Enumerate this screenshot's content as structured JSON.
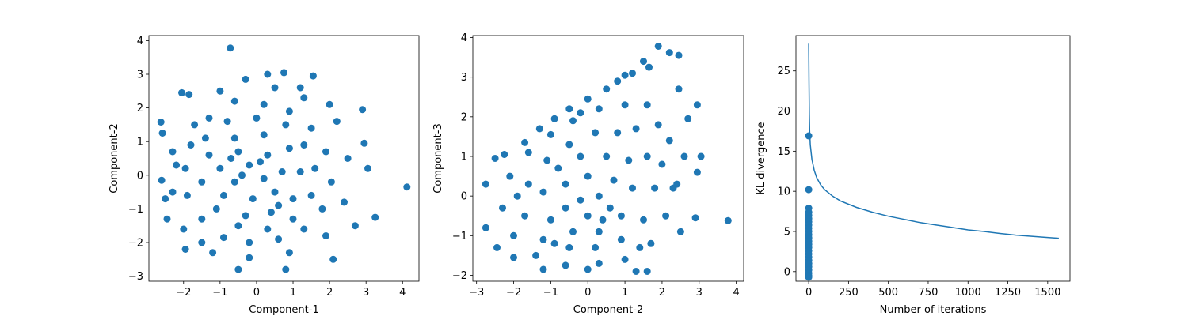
{
  "chart_data": [
    {
      "type": "scatter",
      "xlabel": "Component-1",
      "ylabel": "Component-2",
      "xlim": [
        -2.95,
        4.45
      ],
      "ylim": [
        -3.15,
        4.15
      ],
      "xticks": [
        -2,
        -1,
        0,
        1,
        2,
        3,
        4
      ],
      "yticks": [
        -3,
        -2,
        -1,
        0,
        1,
        2,
        3,
        4
      ],
      "color": "#1f77b4",
      "grid": false,
      "points": [
        [
          4.12,
          -0.35
        ],
        [
          -0.72,
          3.78
        ],
        [
          -2.62,
          1.58
        ],
        [
          -2.58,
          1.25
        ],
        [
          3.25,
          -1.25
        ],
        [
          -2.05,
          2.45
        ],
        [
          -1.85,
          2.4
        ],
        [
          1.55,
          2.95
        ],
        [
          0.75,
          3.05
        ],
        [
          0.3,
          3.0
        ],
        [
          2.9,
          1.95
        ],
        [
          2.95,
          0.95
        ],
        [
          3.05,
          0.2
        ],
        [
          2.1,
          -2.5
        ],
        [
          -0.5,
          -2.8
        ],
        [
          0.8,
          -2.8
        ],
        [
          -1.95,
          -2.2
        ],
        [
          -2.45,
          -1.3
        ],
        [
          -2.6,
          -0.15
        ],
        [
          -2.3,
          0.7
        ],
        [
          -1.0,
          2.5
        ],
        [
          0.5,
          2.6
        ],
        [
          1.3,
          2.3
        ],
        [
          2.2,
          1.6
        ],
        [
          2.5,
          0.5
        ],
        [
          2.4,
          -0.8
        ],
        [
          1.9,
          -1.8
        ],
        [
          0.9,
          -2.3
        ],
        [
          -0.2,
          -2.45
        ],
        [
          -1.2,
          -2.3
        ],
        [
          -2.0,
          -1.6
        ],
        [
          -2.5,
          -0.7
        ],
        [
          -2.2,
          0.3
        ],
        [
          -1.7,
          1.5
        ],
        [
          2.7,
          -1.5
        ],
        [
          -1.5,
          -2.0
        ],
        [
          1.2,
          2.6
        ],
        [
          -0.3,
          2.85
        ],
        [
          2.0,
          2.1
        ],
        [
          -2.3,
          -0.5
        ],
        [
          -1.8,
          0.9
        ],
        [
          -1.3,
          1.7
        ],
        [
          -0.6,
          2.2
        ],
        [
          0.2,
          2.1
        ],
        [
          0.9,
          1.9
        ],
        [
          1.5,
          1.4
        ],
        [
          1.9,
          0.7
        ],
        [
          2.05,
          -0.2
        ],
        [
          1.8,
          -1.0
        ],
        [
          1.3,
          -1.6
        ],
        [
          0.6,
          -1.9
        ],
        [
          -0.2,
          -2.0
        ],
        [
          -0.9,
          -1.85
        ],
        [
          -1.5,
          -1.3
        ],
        [
          -1.9,
          -0.6
        ],
        [
          -1.95,
          0.2
        ],
        [
          -1.4,
          1.1
        ],
        [
          -0.8,
          1.6
        ],
        [
          0.0,
          1.7
        ],
        [
          0.8,
          1.5
        ],
        [
          1.3,
          0.9
        ],
        [
          1.6,
          0.2
        ],
        [
          1.5,
          -0.6
        ],
        [
          1.0,
          -1.3
        ],
        [
          0.3,
          -1.6
        ],
        [
          -0.5,
          -1.5
        ],
        [
          -1.1,
          -1.0
        ],
        [
          -1.5,
          -0.2
        ],
        [
          -1.3,
          0.6
        ],
        [
          -0.6,
          1.1
        ],
        [
          0.2,
          1.2
        ],
        [
          0.9,
          0.8
        ],
        [
          1.2,
          0.1
        ],
        [
          1.0,
          -0.7
        ],
        [
          0.4,
          -1.1
        ],
        [
          -0.3,
          -1.2
        ],
        [
          -0.9,
          -0.6
        ],
        [
          -1.0,
          0.2
        ],
        [
          -0.5,
          0.7
        ],
        [
          0.3,
          0.6
        ],
        [
          0.7,
          0.1
        ],
        [
          0.5,
          -0.5
        ],
        [
          -0.1,
          -0.7
        ],
        [
          -0.6,
          -0.2
        ],
        [
          -0.2,
          0.3
        ],
        [
          0.2,
          -0.1
        ],
        [
          -0.4,
          0.0
        ],
        [
          0.1,
          0.4
        ],
        [
          -0.7,
          0.5
        ],
        [
          0.6,
          -0.9
        ]
      ]
    },
    {
      "type": "scatter",
      "xlabel": "Component-2",
      "ylabel": "Component-3",
      "xlim": [
        -3.1,
        4.2
      ],
      "ylim": [
        -2.15,
        4.05
      ],
      "xticks": [
        -3,
        -2,
        -1,
        0,
        1,
        2,
        3,
        4
      ],
      "yticks": [
        -2,
        -1,
        0,
        1,
        2,
        3,
        4
      ],
      "color": "#1f77b4",
      "grid": false,
      "points": [
        [
          1.9,
          3.78
        ],
        [
          2.2,
          3.62
        ],
        [
          2.45,
          3.55
        ],
        [
          1.5,
          3.4
        ],
        [
          1.65,
          3.25
        ],
        [
          1.2,
          3.1
        ],
        [
          1.0,
          3.05
        ],
        [
          2.45,
          2.7
        ],
        [
          2.95,
          2.3
        ],
        [
          2.7,
          1.95
        ],
        [
          3.05,
          1.0
        ],
        [
          2.95,
          0.6
        ],
        [
          3.78,
          -0.62
        ],
        [
          2.9,
          -0.55
        ],
        [
          2.5,
          -0.9
        ],
        [
          1.6,
          -1.9
        ],
        [
          1.3,
          -1.9
        ],
        [
          0.0,
          -1.85
        ],
        [
          -1.2,
          -1.85
        ],
        [
          -2.0,
          -1.55
        ],
        [
          -2.45,
          -1.3
        ],
        [
          -2.75,
          -0.8
        ],
        [
          -2.75,
          0.3
        ],
        [
          -2.5,
          0.95
        ],
        [
          -2.25,
          1.05
        ],
        [
          -1.7,
          1.35
        ],
        [
          -1.3,
          1.7
        ],
        [
          -0.9,
          1.95
        ],
        [
          -0.5,
          2.2
        ],
        [
          0.0,
          2.45
        ],
        [
          0.5,
          2.7
        ],
        [
          0.8,
          2.9
        ],
        [
          1.6,
          2.3
        ],
        [
          1.9,
          1.8
        ],
        [
          2.2,
          1.4
        ],
        [
          2.6,
          1.0
        ],
        [
          2.3,
          0.2
        ],
        [
          2.1,
          -0.5
        ],
        [
          1.7,
          -1.2
        ],
        [
          1.0,
          -1.6
        ],
        [
          0.3,
          -1.7
        ],
        [
          -0.6,
          -1.75
        ],
        [
          -1.4,
          -1.5
        ],
        [
          -2.0,
          -1.0
        ],
        [
          -2.3,
          -0.3
        ],
        [
          -2.1,
          0.5
        ],
        [
          -1.6,
          1.1
        ],
        [
          -1.0,
          1.55
        ],
        [
          -0.4,
          1.9
        ],
        [
          0.3,
          2.2
        ],
        [
          1.0,
          2.3
        ],
        [
          1.3,
          1.7
        ],
        [
          1.6,
          1.0
        ],
        [
          1.8,
          0.2
        ],
        [
          1.5,
          -0.6
        ],
        [
          0.9,
          -1.1
        ],
        [
          0.2,
          -1.3
        ],
        [
          -0.5,
          -1.3
        ],
        [
          -1.2,
          -1.1
        ],
        [
          -1.7,
          -0.5
        ],
        [
          -1.6,
          0.3
        ],
        [
          -1.1,
          0.9
        ],
        [
          -0.5,
          1.3
        ],
        [
          0.2,
          1.6
        ],
        [
          0.8,
          1.6
        ],
        [
          1.1,
          0.9
        ],
        [
          1.2,
          0.2
        ],
        [
          0.9,
          -0.5
        ],
        [
          0.3,
          -0.9
        ],
        [
          -0.4,
          -0.9
        ],
        [
          -1.0,
          -0.6
        ],
        [
          -1.2,
          0.1
        ],
        [
          -0.8,
          0.7
        ],
        [
          -0.2,
          1.0
        ],
        [
          0.5,
          1.0
        ],
        [
          0.7,
          0.4
        ],
        [
          0.6,
          -0.3
        ],
        [
          0.0,
          -0.5
        ],
        [
          -0.6,
          -0.3
        ],
        [
          -0.6,
          0.3
        ],
        [
          0.0,
          0.5
        ],
        [
          0.3,
          0.0
        ],
        [
          -0.2,
          -0.1
        ],
        [
          0.4,
          -0.6
        ],
        [
          -0.9,
          -1.2
        ],
        [
          1.4,
          -1.3
        ],
        [
          2.0,
          0.8
        ],
        [
          2.4,
          0.3
        ],
        [
          -1.9,
          0.0
        ],
        [
          -0.2,
          2.1
        ]
      ]
    },
    {
      "type": "line+scatter",
      "xlabel": "Number of iterations",
      "ylabel": "KL divergence",
      "xlim": [
        -80,
        1640
      ],
      "ylim": [
        -1.2,
        29.4
      ],
      "xticks": [
        0,
        250,
        500,
        750,
        1000,
        1250,
        1500
      ],
      "yticks": [
        0,
        5,
        10,
        15,
        20,
        25
      ],
      "color": "#1f77b4",
      "grid": false,
      "line": [
        [
          0,
          28.4
        ],
        [
          2,
          23.5
        ],
        [
          4,
          19.5
        ],
        [
          6,
          17.5
        ],
        [
          10,
          15.8
        ],
        [
          20,
          14.0
        ],
        [
          35,
          12.6
        ],
        [
          50,
          11.7
        ],
        [
          75,
          10.8
        ],
        [
          100,
          10.2
        ],
        [
          150,
          9.4
        ],
        [
          200,
          8.8
        ],
        [
          300,
          8.0
        ],
        [
          400,
          7.4
        ],
        [
          500,
          6.9
        ],
        [
          600,
          6.5
        ],
        [
          700,
          6.1
        ],
        [
          800,
          5.8
        ],
        [
          900,
          5.5
        ],
        [
          1000,
          5.2
        ],
        [
          1100,
          5.0
        ],
        [
          1200,
          4.75
        ],
        [
          1300,
          4.55
        ],
        [
          1400,
          4.4
        ],
        [
          1500,
          4.25
        ],
        [
          1570,
          4.15
        ]
      ],
      "points": [
        [
          0,
          16.9
        ],
        [
          0,
          10.2
        ],
        [
          0,
          7.9
        ],
        [
          0,
          7.4
        ],
        [
          0,
          7.0
        ],
        [
          0,
          6.6
        ],
        [
          0,
          6.2
        ],
        [
          0,
          5.8
        ],
        [
          0,
          5.4
        ],
        [
          0,
          5.0
        ],
        [
          0,
          4.6
        ],
        [
          0,
          4.2
        ],
        [
          0,
          3.8
        ],
        [
          0,
          3.4
        ],
        [
          0,
          3.0
        ],
        [
          0,
          2.6
        ],
        [
          0,
          2.2
        ],
        [
          0,
          1.8
        ],
        [
          0,
          1.4
        ],
        [
          0,
          1.0
        ],
        [
          0,
          0.6
        ],
        [
          0,
          0.2
        ],
        [
          0,
          -0.2
        ],
        [
          0,
          -0.5
        ],
        [
          0,
          -0.7
        ]
      ]
    }
  ]
}
